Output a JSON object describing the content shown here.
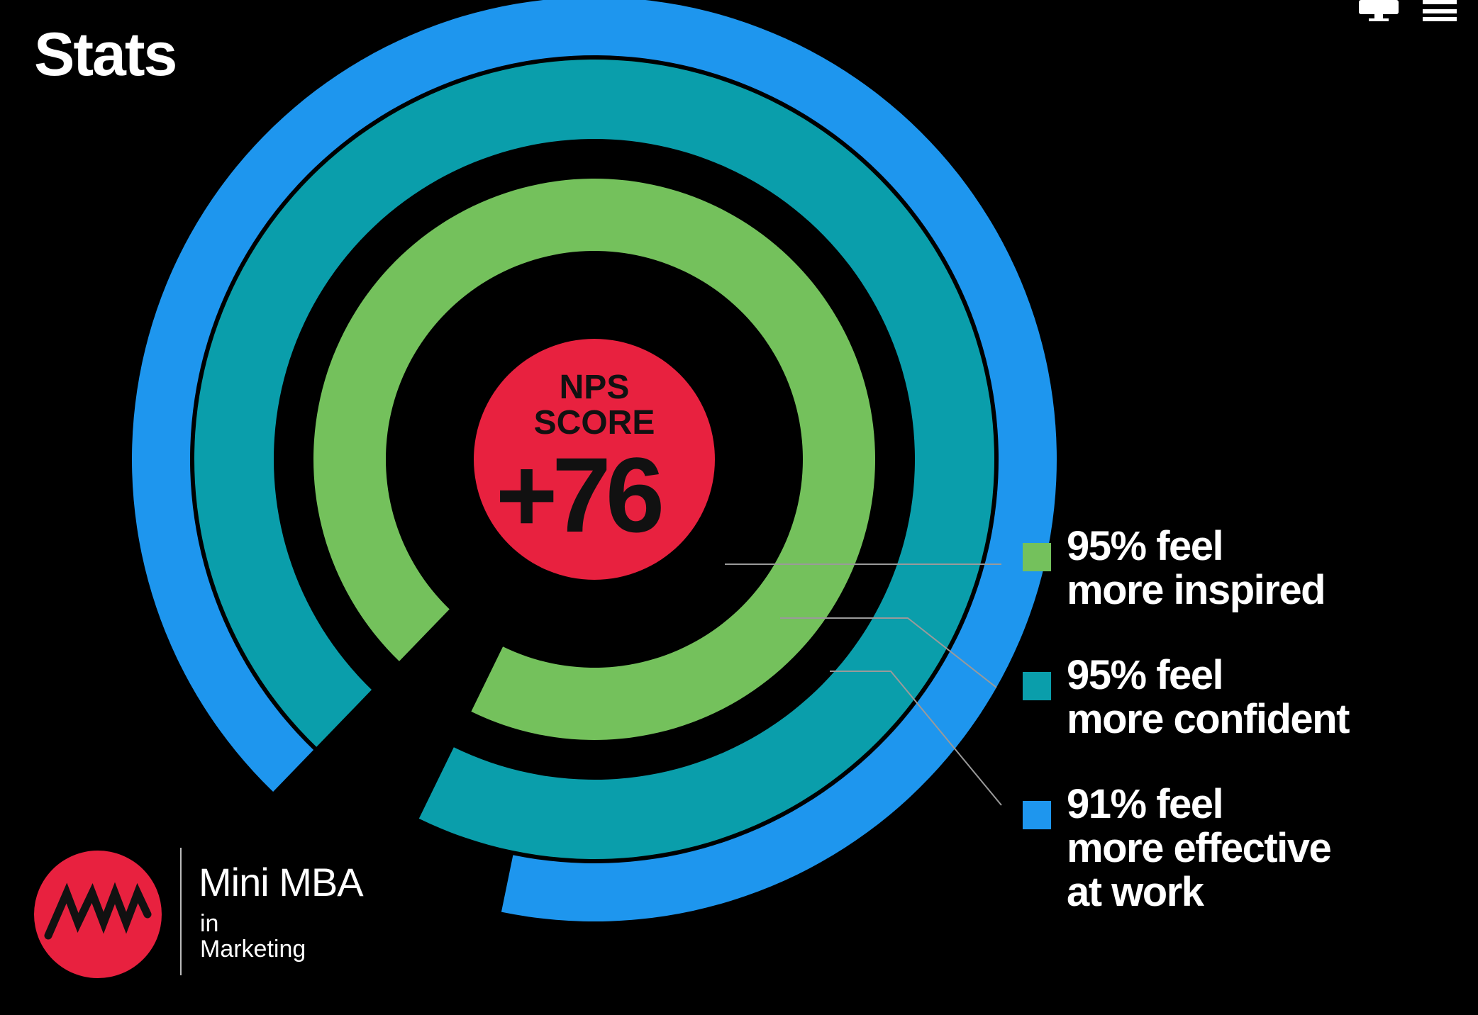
{
  "page": {
    "title": "Stats"
  },
  "topbar": {
    "icons": [
      "monitor-icon",
      "menu-icon"
    ]
  },
  "chart_data": {
    "type": "radial-bar",
    "center": {
      "line1": "NPS",
      "line2": "SCORE",
      "value": "+76",
      "color": "#E8213F"
    },
    "series": [
      {
        "value": 95,
        "color": "#74C15C",
        "label_line1": "95% feel",
        "label_line2": "more inspired"
      },
      {
        "value": 95,
        "color": "#0A9EAB",
        "label_line1": "95% feel",
        "label_line2": "more confident"
      },
      {
        "value": 91,
        "color": "#1E96EE",
        "label_line1": "91% feel",
        "label_line2": "more effective\nat work"
      }
    ],
    "unit": "%"
  },
  "logo": {
    "title": "Mini MBA",
    "in": "in",
    "subtitle": "Marketing",
    "badge_color": "#E8213F"
  },
  "colors": {
    "background": "#000000",
    "text": "#FFFFFF",
    "leader_line": "#9A9A9A"
  }
}
